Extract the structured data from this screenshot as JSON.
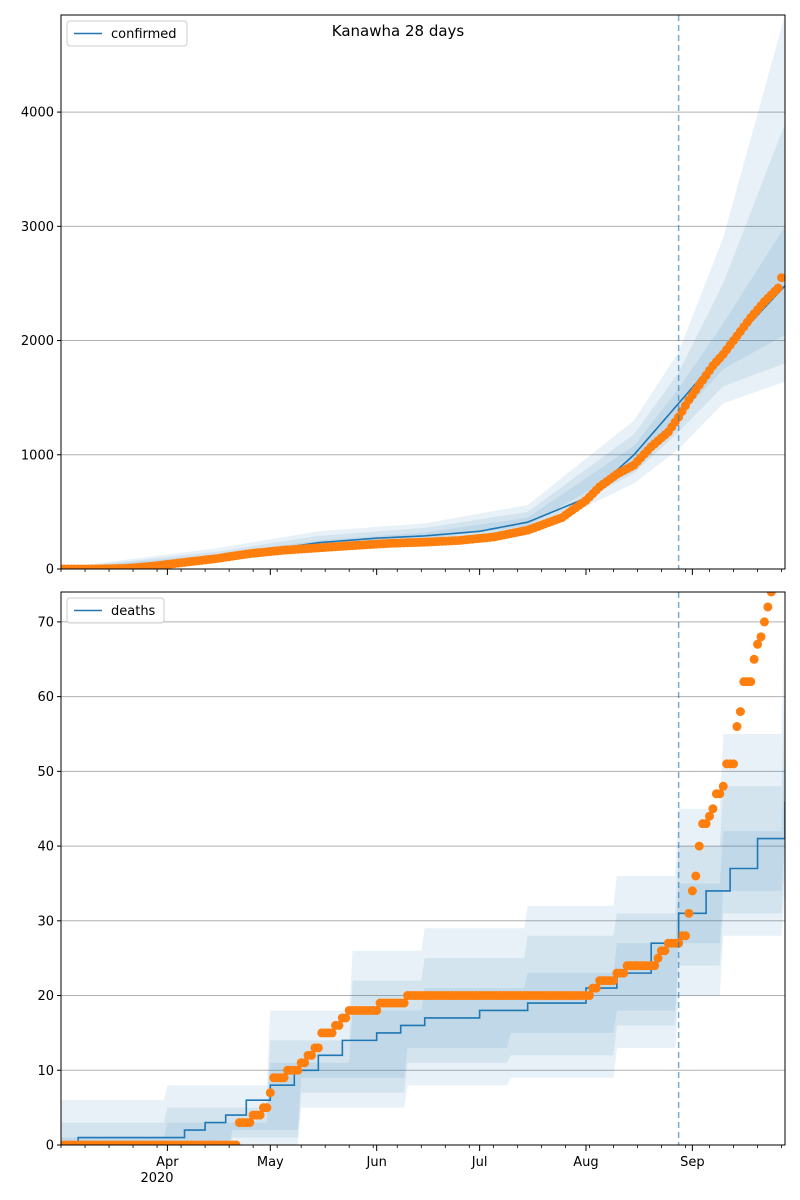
{
  "title": "Kanawha 28 days",
  "x_tick_labels": [
    "Apr",
    "May",
    "Jun",
    "Jul",
    "Aug",
    "Sep"
  ],
  "x_year_label": "2020",
  "colors": {
    "model": "#1f77b4",
    "observed": "#ff7f0e",
    "band": "#1f77b4",
    "grid": "#b0b0b0",
    "forecast_line": "#1f77b4"
  },
  "chart_data": [
    {
      "type": "line",
      "legend": "confirmed",
      "legend_position": "top-left",
      "grid": "y",
      "x_domain": [
        "2020-03-01",
        "2020-09-28"
      ],
      "forecast_start": "2020-08-28",
      "ylim": [
        0,
        4850
      ],
      "yticks": [
        0,
        1000,
        2000,
        3000,
        4000
      ],
      "model": [
        [
          "2020-03-01",
          0
        ],
        [
          "2020-03-20",
          15
        ],
        [
          "2020-04-01",
          40
        ],
        [
          "2020-04-15",
          110
        ],
        [
          "2020-05-01",
          170
        ],
        [
          "2020-05-15",
          230
        ],
        [
          "2020-06-01",
          270
        ],
        [
          "2020-06-15",
          290
        ],
        [
          "2020-07-01",
          330
        ],
        [
          "2020-07-15",
          410
        ],
        [
          "2020-08-01",
          620
        ],
        [
          "2020-08-15",
          1000
        ],
        [
          "2020-08-28",
          1450
        ],
        [
          "2020-09-10",
          1900
        ],
        [
          "2020-09-28",
          2480
        ]
      ],
      "bands": [
        {
          "lower": [
            [
              "2020-03-01",
              0
            ],
            [
              "2020-04-15",
              60
            ],
            [
              "2020-05-15",
              160
            ],
            [
              "2020-06-15",
              210
            ],
            [
              "2020-07-15",
              300
            ],
            [
              "2020-08-15",
              750
            ],
            [
              "2020-08-28",
              1050
            ],
            [
              "2020-09-10",
              1450
            ],
            [
              "2020-09-28",
              1640
            ]
          ],
          "upper": [
            [
              "2020-03-01",
              10
            ],
            [
              "2020-04-15",
              180
            ],
            [
              "2020-05-15",
              330
            ],
            [
              "2020-06-15",
              400
            ],
            [
              "2020-07-15",
              560
            ],
            [
              "2020-08-15",
              1300
            ],
            [
              "2020-08-28",
              1900
            ],
            [
              "2020-09-10",
              2900
            ],
            [
              "2020-09-28",
              4850
            ]
          ]
        },
        {
          "lower": [
            [
              "2020-03-01",
              0
            ],
            [
              "2020-04-15",
              80
            ],
            [
              "2020-05-15",
              190
            ],
            [
              "2020-06-15",
              240
            ],
            [
              "2020-07-15",
              340
            ],
            [
              "2020-08-15",
              840
            ],
            [
              "2020-08-28",
              1200
            ],
            [
              "2020-09-10",
              1600
            ],
            [
              "2020-09-28",
              1800
            ]
          ],
          "upper": [
            [
              "2020-03-01",
              5
            ],
            [
              "2020-04-15",
              150
            ],
            [
              "2020-05-15",
              290
            ],
            [
              "2020-06-15",
              360
            ],
            [
              "2020-07-15",
              500
            ],
            [
              "2020-08-15",
              1180
            ],
            [
              "2020-08-28",
              1720
            ],
            [
              "2020-09-10",
              2500
            ],
            [
              "2020-09-28",
              3900
            ]
          ]
        },
        {
          "lower": [
            [
              "2020-03-01",
              0
            ],
            [
              "2020-04-15",
              95
            ],
            [
              "2020-05-15",
              210
            ],
            [
              "2020-06-15",
              265
            ],
            [
              "2020-07-15",
              375
            ],
            [
              "2020-08-15",
              920
            ],
            [
              "2020-08-28",
              1330
            ],
            [
              "2020-09-10",
              1750
            ],
            [
              "2020-09-28",
              2050
            ]
          ],
          "upper": [
            [
              "2020-03-01",
              2
            ],
            [
              "2020-04-15",
              125
            ],
            [
              "2020-05-15",
              250
            ],
            [
              "2020-06-15",
              320
            ],
            [
              "2020-07-15",
              450
            ],
            [
              "2020-08-15",
              1080
            ],
            [
              "2020-08-28",
              1580
            ],
            [
              "2020-09-10",
              2150
            ],
            [
              "2020-09-28",
              3000
            ]
          ]
        }
      ],
      "observed": [
        [
          "2020-03-01",
          0
        ],
        [
          "2020-03-10",
          0
        ],
        [
          "2020-03-20",
          5
        ],
        [
          "2020-03-28",
          25
        ],
        [
          "2020-04-05",
          55
        ],
        [
          "2020-04-15",
          90
        ],
        [
          "2020-04-25",
          135
        ],
        [
          "2020-05-05",
          165
        ],
        [
          "2020-05-15",
          185
        ],
        [
          "2020-05-25",
          205
        ],
        [
          "2020-06-05",
          225
        ],
        [
          "2020-06-15",
          235
        ],
        [
          "2020-06-25",
          250
        ],
        [
          "2020-07-05",
          280
        ],
        [
          "2020-07-15",
          340
        ],
        [
          "2020-07-25",
          450
        ],
        [
          "2020-08-01",
          600
        ],
        [
          "2020-08-05",
          720
        ],
        [
          "2020-08-10",
          830
        ],
        [
          "2020-08-15",
          910
        ],
        [
          "2020-08-20",
          1070
        ],
        [
          "2020-08-25",
          1200
        ],
        [
          "2020-08-28",
          1330
        ],
        [
          "2020-08-31",
          1480
        ],
        [
          "2020-09-03",
          1610
        ],
        [
          "2020-09-07",
          1780
        ],
        [
          "2020-09-10",
          1880
        ],
        [
          "2020-09-14",
          2040
        ],
        [
          "2020-09-18",
          2200
        ],
        [
          "2020-09-22",
          2340
        ],
        [
          "2020-09-26",
          2460
        ],
        [
          "2020-09-27",
          2550
        ]
      ]
    },
    {
      "type": "line",
      "legend": "deaths",
      "legend_position": "top-left",
      "grid": "y",
      "x_domain": [
        "2020-03-01",
        "2020-09-28"
      ],
      "forecast_start": "2020-08-28",
      "ylim": [
        0,
        74
      ],
      "yticks": [
        0,
        10,
        20,
        30,
        40,
        50,
        60,
        70
      ],
      "model": [
        [
          "2020-03-01",
          0
        ],
        [
          "2020-03-06",
          1
        ],
        [
          "2020-04-01",
          1
        ],
        [
          "2020-04-06",
          2
        ],
        [
          "2020-04-12",
          3
        ],
        [
          "2020-04-18",
          4
        ],
        [
          "2020-04-24",
          6
        ],
        [
          "2020-05-01",
          8
        ],
        [
          "2020-05-08",
          10
        ],
        [
          "2020-05-15",
          12
        ],
        [
          "2020-05-22",
          14
        ],
        [
          "2020-06-01",
          15
        ],
        [
          "2020-06-08",
          16
        ],
        [
          "2020-06-15",
          17
        ],
        [
          "2020-07-01",
          18
        ],
        [
          "2020-07-15",
          19
        ],
        [
          "2020-08-01",
          21
        ],
        [
          "2020-08-10",
          23
        ],
        [
          "2020-08-20",
          27
        ],
        [
          "2020-08-28",
          31
        ],
        [
          "2020-09-05",
          34
        ],
        [
          "2020-09-12",
          37
        ],
        [
          "2020-09-20",
          41
        ],
        [
          "2020-09-28",
          46
        ]
      ],
      "bands": [
        {
          "lower": [
            [
              "2020-03-01",
              0
            ],
            [
              "2020-04-20",
              0
            ],
            [
              "2020-05-10",
              5
            ],
            [
              "2020-06-10",
              8
            ],
            [
              "2020-07-10",
              9
            ],
            [
              "2020-08-10",
              13
            ],
            [
              "2020-08-28",
              20
            ],
            [
              "2020-09-10",
              28
            ],
            [
              "2020-09-28",
              34
            ]
          ],
          "upper": [
            [
              "2020-03-01",
              6
            ],
            [
              "2020-04-01",
              8
            ],
            [
              "2020-05-01",
              18
            ],
            [
              "2020-05-25",
              26
            ],
            [
              "2020-06-15",
              29
            ],
            [
              "2020-07-15",
              32
            ],
            [
              "2020-08-10",
              36
            ],
            [
              "2020-08-28",
              45
            ],
            [
              "2020-09-10",
              55
            ],
            [
              "2020-09-28",
              74
            ]
          ]
        },
        {
          "lower": [
            [
              "2020-03-01",
              0
            ],
            [
              "2020-04-20",
              1
            ],
            [
              "2020-05-10",
              7
            ],
            [
              "2020-06-10",
              11
            ],
            [
              "2020-07-10",
              12
            ],
            [
              "2020-08-10",
              16
            ],
            [
              "2020-08-28",
              24
            ],
            [
              "2020-09-10",
              31
            ],
            [
              "2020-09-28",
              37
            ]
          ],
          "upper": [
            [
              "2020-03-01",
              3
            ],
            [
              "2020-04-01",
              5
            ],
            [
              "2020-05-01",
              14
            ],
            [
              "2020-05-25",
              22
            ],
            [
              "2020-06-15",
              25
            ],
            [
              "2020-07-15",
              28
            ],
            [
              "2020-08-10",
              31
            ],
            [
              "2020-08-28",
              40
            ],
            [
              "2020-09-10",
              48
            ],
            [
              "2020-09-28",
              62
            ]
          ]
        },
        {
          "lower": [
            [
              "2020-03-01",
              0
            ],
            [
              "2020-04-20",
              2
            ],
            [
              "2020-05-10",
              9
            ],
            [
              "2020-06-10",
              13
            ],
            [
              "2020-07-10",
              15
            ],
            [
              "2020-08-10",
              18
            ],
            [
              "2020-08-28",
              27
            ],
            [
              "2020-09-10",
              34
            ],
            [
              "2020-09-28",
              41
            ]
          ],
          "upper": [
            [
              "2020-03-01",
              1
            ],
            [
              "2020-04-01",
              3
            ],
            [
              "2020-05-01",
              11
            ],
            [
              "2020-05-25",
              18
            ],
            [
              "2020-06-15",
              21
            ],
            [
              "2020-07-15",
              23
            ],
            [
              "2020-08-10",
              27
            ],
            [
              "2020-08-28",
              35
            ],
            [
              "2020-09-10",
              42
            ],
            [
              "2020-09-28",
              54
            ]
          ]
        }
      ],
      "observed": [
        [
          "2020-03-01",
          0
        ],
        [
          "2020-04-15",
          0
        ],
        [
          "2020-04-20",
          0
        ],
        [
          "2020-04-22",
          3
        ],
        [
          "2020-04-26",
          4
        ],
        [
          "2020-04-29",
          5
        ],
        [
          "2020-05-01",
          7
        ],
        [
          "2020-05-02",
          9
        ],
        [
          "2020-05-06",
          10
        ],
        [
          "2020-05-10",
          11
        ],
        [
          "2020-05-12",
          12
        ],
        [
          "2020-05-14",
          13
        ],
        [
          "2020-05-16",
          15
        ],
        [
          "2020-05-20",
          16
        ],
        [
          "2020-05-22",
          17
        ],
        [
          "2020-05-24",
          18
        ],
        [
          "2020-06-01",
          18
        ],
        [
          "2020-06-02",
          19
        ],
        [
          "2020-06-08",
          19
        ],
        [
          "2020-06-10",
          20
        ],
        [
          "2020-07-15",
          20
        ],
        [
          "2020-08-01",
          20
        ],
        [
          "2020-08-03",
          21
        ],
        [
          "2020-08-05",
          22
        ],
        [
          "2020-08-10",
          23
        ],
        [
          "2020-08-13",
          24
        ],
        [
          "2020-08-20",
          24
        ],
        [
          "2020-08-22",
          25
        ],
        [
          "2020-08-23",
          26
        ],
        [
          "2020-08-25",
          27
        ],
        [
          "2020-08-28",
          27
        ],
        [
          "2020-08-29",
          28
        ],
        [
          "2020-08-31",
          31
        ],
        [
          "2020-09-01",
          34
        ],
        [
          "2020-09-02",
          36
        ],
        [
          "2020-09-03",
          40
        ],
        [
          "2020-09-04",
          43
        ],
        [
          "2020-09-06",
          44
        ],
        [
          "2020-09-07",
          45
        ],
        [
          "2020-09-08",
          47
        ],
        [
          "2020-09-10",
          48
        ],
        [
          "2020-09-11",
          51
        ],
        [
          "2020-09-13",
          51
        ],
        [
          "2020-09-14",
          56
        ],
        [
          "2020-09-15",
          58
        ],
        [
          "2020-09-16",
          62
        ],
        [
          "2020-09-18",
          62
        ],
        [
          "2020-09-19",
          65
        ],
        [
          "2020-09-20",
          67
        ],
        [
          "2020-09-21",
          68
        ],
        [
          "2020-09-22",
          70
        ],
        [
          "2020-09-23",
          72
        ],
        [
          "2020-09-24",
          74
        ]
      ]
    }
  ]
}
